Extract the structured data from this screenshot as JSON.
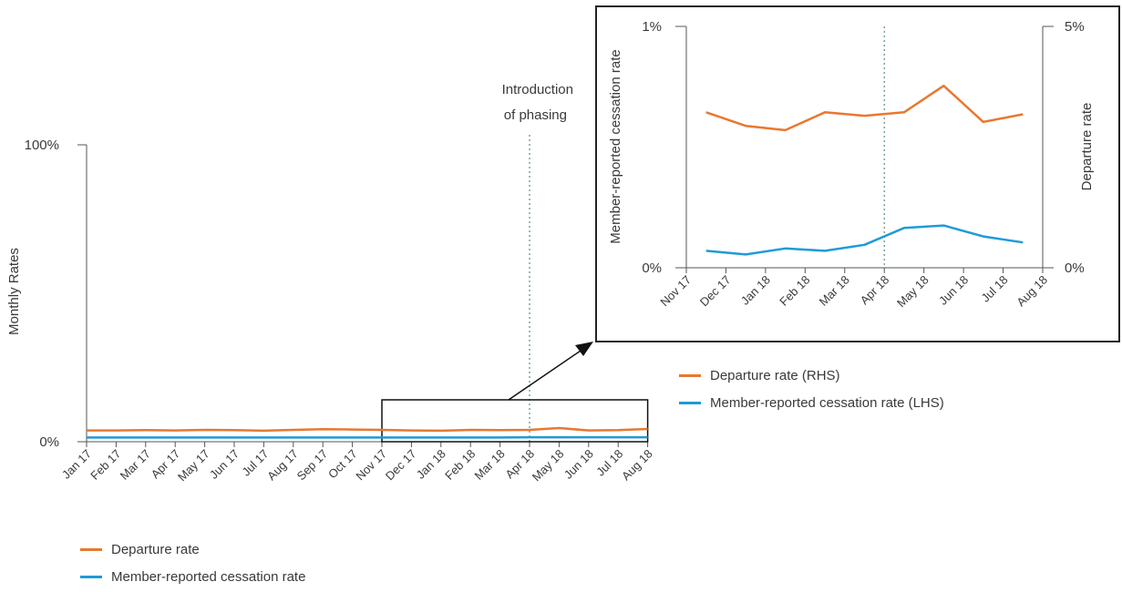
{
  "chart_data": [
    {
      "type": "line",
      "ylabel": "Monthly Rates",
      "yticks": [
        "100%",
        "0%"
      ],
      "ylim": [
        0,
        100
      ],
      "categories": [
        "Jan 17",
        "Feb 17",
        "Mar 17",
        "Apr 17",
        "May 17",
        "Jun 17",
        "Jul 17",
        "Aug 17",
        "Sep 17",
        "Oct 17",
        "Nov 17",
        "Dec 17",
        "Jan 18",
        "Feb 18",
        "Mar 18",
        "Apr 18",
        "May 18",
        "Jun 18",
        "Jul 18",
        "Aug 18"
      ],
      "series": [
        {
          "name": "Departure rate",
          "color": "#e8782f",
          "values": [
            3.8,
            3.8,
            3.9,
            3.8,
            4.0,
            3.9,
            3.7,
            4.0,
            4.2,
            4.1,
            4.0,
            3.8,
            3.7,
            4.0,
            3.9,
            4.0,
            4.6,
            3.8,
            3.9,
            4.3
          ]
        },
        {
          "name": "Member-reported cessation rate",
          "color": "#1e9bd7",
          "values": [
            1.4,
            1.4,
            1.4,
            1.4,
            1.4,
            1.4,
            1.4,
            1.4,
            1.4,
            1.4,
            1.4,
            1.4,
            1.4,
            1.4,
            1.4,
            1.5,
            1.5,
            1.5,
            1.5,
            1.5
          ]
        }
      ],
      "annotation": {
        "text_line1": "Introduction",
        "text_line2": "of phasing",
        "at": "Apr 18"
      },
      "grid": false,
      "legend_position": "bottom-left"
    },
    {
      "type": "line",
      "ylabel_left": "Member-reported cessation rate",
      "ylabel_right": "Departure rate",
      "ylim_left": [
        0,
        1
      ],
      "ylim_right": [
        0,
        5
      ],
      "ytick_left_top": "1%",
      "ytick_left_bottom": "0%",
      "ytick_right_top": "5%",
      "ytick_right_bottom": "0%",
      "categories": [
        "Nov 17",
        "Dec 17",
        "Jan 18",
        "Feb 18",
        "Mar 18",
        "Apr 18",
        "May 18",
        "Jun 18",
        "Jul 18",
        "Aug 18"
      ],
      "series": [
        {
          "name": "Departure rate (RHS)",
          "axis": "right",
          "color": "#e8782f",
          "values": [
            3.22,
            2.94,
            2.85,
            3.22,
            3.15,
            3.22,
            3.77,
            3.02,
            3.18,
            3.5
          ]
        },
        {
          "name": "Member-reported cessation rate (LHS)",
          "axis": "left",
          "color": "#1e9bd7",
          "values": [
            0.07,
            0.055,
            0.08,
            0.07,
            0.095,
            0.165,
            0.175,
            0.13,
            0.105,
            0.097
          ]
        }
      ],
      "annotation_at": "Apr 18",
      "grid": false,
      "legend_position": "bottom"
    }
  ]
}
